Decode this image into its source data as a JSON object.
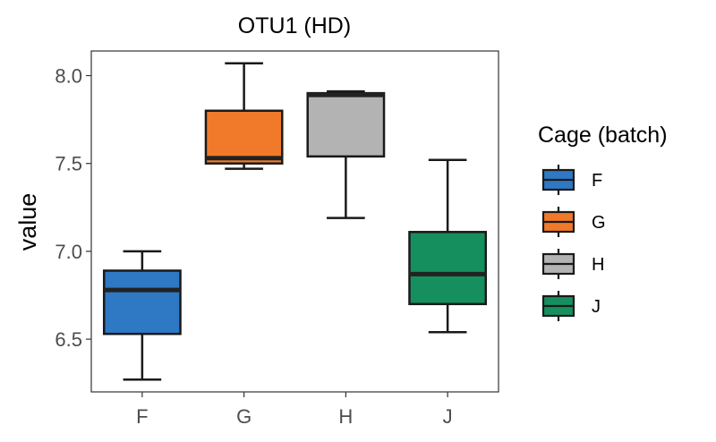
{
  "chart_data": {
    "type": "box",
    "title": "OTU1 (HD)",
    "xlabel": "",
    "ylabel": "value",
    "categories": [
      "F",
      "G",
      "H",
      "J"
    ],
    "yticks": [
      6.5,
      7.0,
      7.5,
      8.0
    ],
    "yticklabels": [
      "6.5",
      "7.0",
      "7.5",
      "8.0"
    ],
    "ylim": [
      6.2,
      8.14
    ],
    "grid": false,
    "legend": {
      "title": "Cage (batch)",
      "placement": "right",
      "entries": [
        "F",
        "G",
        "H",
        "J"
      ]
    },
    "boxes": [
      {
        "category": "F",
        "min": 6.27,
        "q1": 6.53,
        "median": 6.78,
        "q3": 6.89,
        "max": 7.0,
        "color": "#2E78C4"
      },
      {
        "category": "G",
        "min": 7.47,
        "q1": 7.5,
        "median": 7.53,
        "q3": 7.8,
        "max": 8.07,
        "color": "#F07A2A"
      },
      {
        "category": "H",
        "min": 7.19,
        "q1": 7.54,
        "median": 7.89,
        "q3": 7.9,
        "max": 7.91,
        "color": "#B3B3B3"
      },
      {
        "category": "J",
        "min": 6.54,
        "q1": 6.7,
        "median": 6.87,
        "q3": 7.11,
        "max": 7.52,
        "color": "#168F5F"
      }
    ]
  }
}
